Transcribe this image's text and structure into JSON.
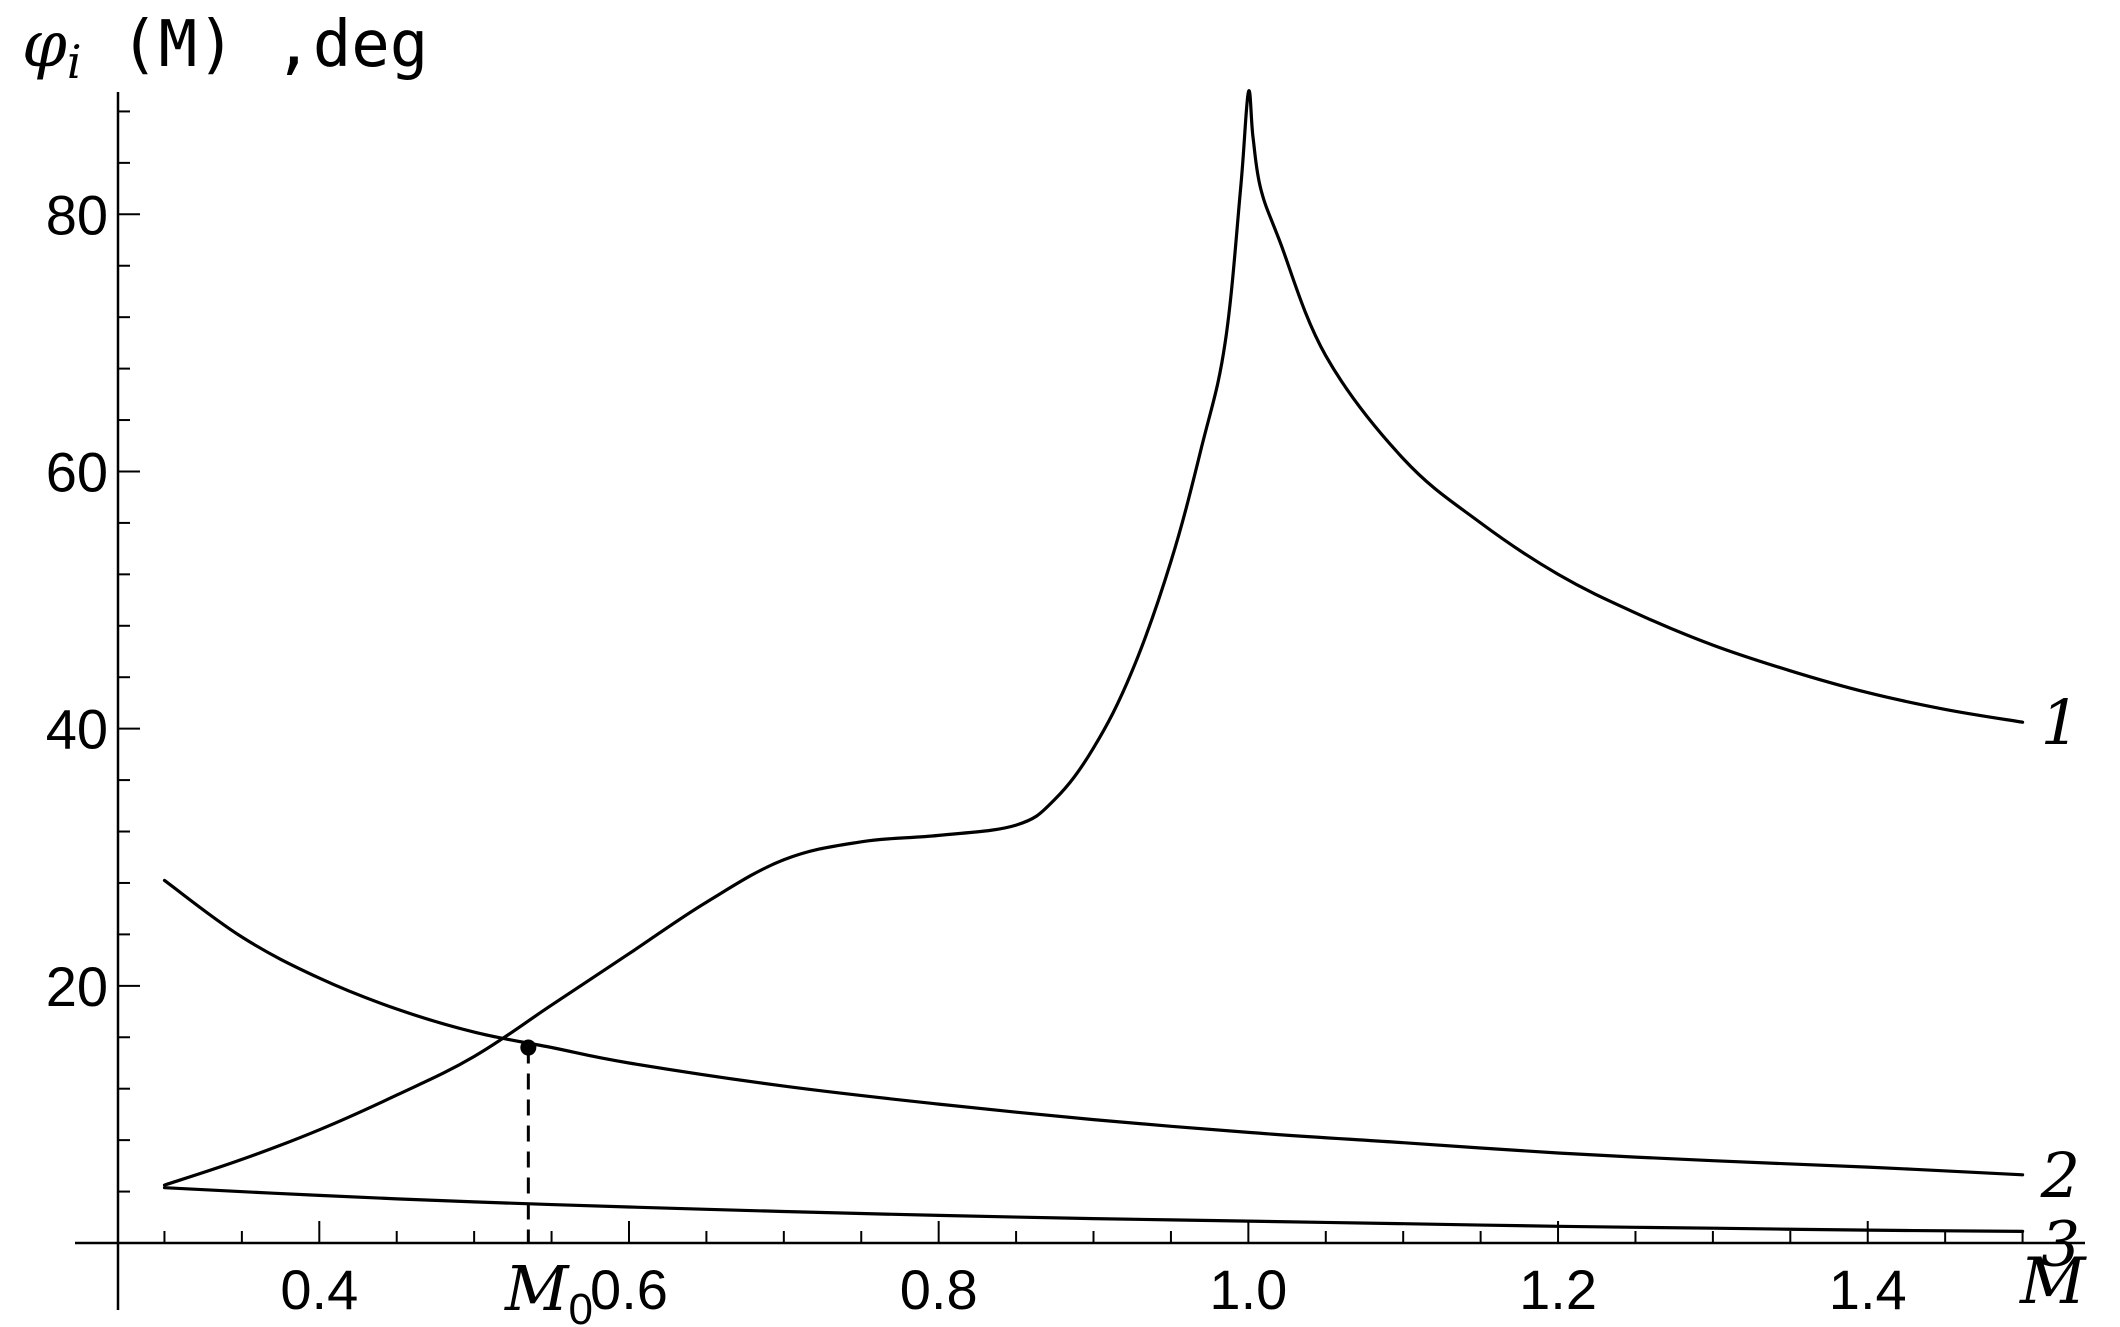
{
  "chart_data": {
    "type": "line",
    "title": "",
    "xlabel": "M",
    "ylabel_parts": {
      "symbol": "φ",
      "subscript": "i",
      "rest": " (M) ,deg"
    },
    "xlim": [
      0.27,
      1.55
    ],
    "ylim": [
      0,
      92
    ],
    "x_ticks_major": [
      0.4,
      0.6,
      0.8,
      1.0,
      1.2,
      1.4
    ],
    "x_tick_labels": [
      "0.4",
      "0.6",
      "0.8",
      "1.0",
      "1.2",
      "1.4"
    ],
    "y_ticks_major": [
      20,
      40,
      60,
      80
    ],
    "y_tick_labels": [
      "20",
      "40",
      "60",
      "80"
    ],
    "grid": false,
    "series": [
      {
        "name": "1",
        "x": [
          0.3,
          0.35,
          0.4,
          0.45,
          0.5,
          0.55,
          0.6,
          0.65,
          0.7,
          0.75,
          0.8,
          0.85,
          0.875,
          0.9,
          0.925,
          0.95,
          0.97,
          0.985,
          0.995,
          1.0,
          1.003,
          1.008,
          1.02,
          1.05,
          1.1,
          1.15,
          1.2,
          1.25,
          1.3,
          1.35,
          1.4,
          1.45,
          1.5
        ],
        "y": [
          4.5,
          6.5,
          8.8,
          11.5,
          14.5,
          18.5,
          22.5,
          26.5,
          29.8,
          31.2,
          31.7,
          32.5,
          34.5,
          38.5,
          44.5,
          53,
          62,
          70,
          82,
          89.5,
          86,
          82,
          78,
          69,
          61,
          56,
          52,
          49,
          46.5,
          44.5,
          42.8,
          41.5,
          40.5
        ]
      },
      {
        "name": "2",
        "x": [
          0.3,
          0.35,
          0.4,
          0.45,
          0.5,
          0.55,
          0.6,
          0.7,
          0.8,
          0.9,
          1.0,
          1.1,
          1.2,
          1.3,
          1.4,
          1.5
        ],
        "y": [
          28.2,
          23.8,
          20.6,
          18.2,
          16.4,
          15.2,
          14.0,
          12.2,
          10.8,
          9.6,
          8.6,
          7.8,
          7.0,
          6.4,
          5.9,
          5.3
        ]
      },
      {
        "name": "3",
        "x": [
          0.3,
          0.4,
          0.5,
          0.6,
          0.7,
          0.8,
          0.9,
          1.0,
          1.1,
          1.2,
          1.3,
          1.4,
          1.5
        ],
        "y": [
          4.3,
          3.7,
          3.2,
          2.8,
          2.45,
          2.15,
          1.9,
          1.7,
          1.5,
          1.3,
          1.15,
          1.0,
          0.9
        ]
      }
    ],
    "intersection_point": {
      "label": "M0",
      "x": 0.535,
      "y": 15.2
    }
  }
}
